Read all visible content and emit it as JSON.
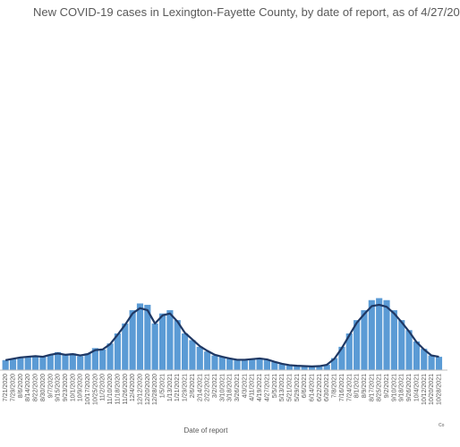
{
  "chart_data": {
    "type": "bar",
    "title": "New COVID-19 cases in Lexington-Fayette County, by date of report, as of 4/27/20",
    "xlabel": "Date of report",
    "ylabel": "",
    "ylim": [
      0,
      1100
    ],
    "x_tick_labels": [
      "7/21/2020",
      "7/29/2020",
      "8/6/2020",
      "8/14/2020",
      "8/22/2020",
      "8/30/2020",
      "9/7/2020",
      "9/15/2020",
      "9/23/2020",
      "10/1/2020",
      "10/9/2020",
      "10/17/2020",
      "10/25/2020",
      "11/2/2020",
      "11/10/2020",
      "11/18/2020",
      "11/26/2020",
      "12/4/2020",
      "12/12/2020",
      "12/20/2020",
      "12/28/2020",
      "1/5/2021",
      "1/13/2021",
      "1/21/2021",
      "1/29/2021",
      "2/6/2021",
      "2/14/2021",
      "2/22/2021",
      "3/2/2021",
      "3/10/2021",
      "3/18/2021",
      "3/26/2021",
      "4/3/2021",
      "4/11/2021",
      "4/19/2021",
      "4/27/2021",
      "5/5/2021",
      "5/13/2021",
      "5/21/2021",
      "5/29/2021",
      "6/6/2021",
      "6/14/2021",
      "6/22/2021",
      "6/30/2021",
      "7/8/2021",
      "7/16/2021",
      "7/24/2021",
      "8/1/2021",
      "8/9/2021",
      "8/17/2021",
      "8/25/2021",
      "9/2/2021",
      "9/10/2021",
      "9/18/2021",
      "9/26/2021",
      "10/4/2021",
      "10/12/2021",
      "10/20/2021",
      "10/28/2021"
    ],
    "series": [
      {
        "type": "bar",
        "color": "#5b9bd5",
        "values": [
          30,
          34,
          38,
          40,
          42,
          40,
          46,
          54,
          46,
          50,
          42,
          50,
          66,
          62,
          80,
          110,
          140,
          180,
          200,
          196,
          140,
          170,
          180,
          150,
          110,
          90,
          70,
          56,
          44,
          40,
          34,
          30,
          30,
          34,
          36,
          32,
          24,
          18,
          14,
          12,
          12,
          10,
          12,
          16,
          36,
          70,
          110,
          150,
          180,
          210,
          216,
          210,
          180,
          150,
          120,
          86,
          64,
          44,
          40
        ]
      },
      {
        "type": "line",
        "color": "#1f3864",
        "values": [
          30,
          34,
          38,
          40,
          42,
          40,
          46,
          50,
          46,
          48,
          44,
          48,
          60,
          62,
          78,
          106,
          136,
          170,
          186,
          180,
          140,
          164,
          170,
          146,
          112,
          92,
          72,
          58,
          46,
          40,
          35,
          31,
          31,
          33,
          35,
          32,
          25,
          19,
          15,
          13,
          12,
          11,
          12,
          16,
          34,
          66,
          104,
          142,
          168,
          192,
          196,
          190,
          170,
          144,
          116,
          84,
          62,
          44,
          40
        ]
      }
    ]
  },
  "credit": "Co"
}
